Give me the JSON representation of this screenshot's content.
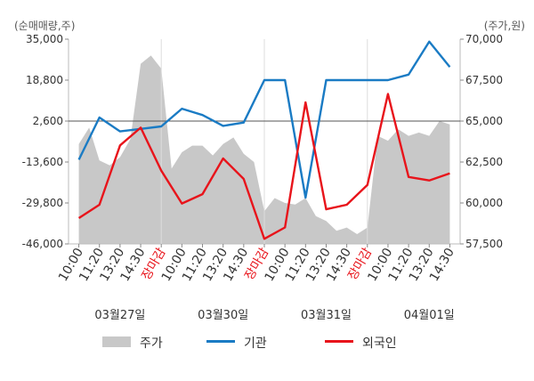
{
  "chart_data": {
    "type": "line",
    "left_unit": "(순매매량,주)",
    "right_unit": "(주가,원)",
    "left_axis": {
      "min": -46000,
      "max": 35000,
      "ticks": [
        "35,000",
        "18,800",
        "2,600",
        "-13,600",
        "-29,800",
        "-46,000"
      ],
      "tick_values": [
        35000,
        18800,
        2600,
        -13600,
        -29800,
        -46000
      ]
    },
    "right_axis": {
      "min": 57500,
      "max": 70000,
      "ticks": [
        "70,000",
        "67,500",
        "65,000",
        "62,500",
        "60,000",
        "57,500"
      ],
      "tick_values": [
        70000,
        67500,
        65000,
        62500,
        60000,
        57500
      ]
    },
    "x_ticks": [
      {
        "label": "10:00",
        "slot": 0,
        "close": false
      },
      {
        "label": "11:20",
        "slot": 1,
        "close": false
      },
      {
        "label": "13:20",
        "slot": 2,
        "close": false
      },
      {
        "label": "14:30",
        "slot": 3,
        "close": false
      },
      {
        "label": "장마감",
        "slot": 4,
        "close": true
      },
      {
        "label": "10:00",
        "slot": 5,
        "close": false
      },
      {
        "label": "11:20",
        "slot": 6,
        "close": false
      },
      {
        "label": "13:20",
        "slot": 7,
        "close": false
      },
      {
        "label": "14:30",
        "slot": 8,
        "close": false
      },
      {
        "label": "장마감",
        "slot": 9,
        "close": true
      },
      {
        "label": "10:00",
        "slot": 10,
        "close": false
      },
      {
        "label": "11:20",
        "slot": 11,
        "close": false
      },
      {
        "label": "13:20",
        "slot": 12,
        "close": false
      },
      {
        "label": "14:30",
        "slot": 13,
        "close": false
      },
      {
        "label": "장마감",
        "slot": 14,
        "close": true
      },
      {
        "label": "10:00",
        "slot": 15,
        "close": false
      },
      {
        "label": "11:20",
        "slot": 16,
        "close": false
      },
      {
        "label": "13:20",
        "slot": 17,
        "close": false
      },
      {
        "label": "14:30",
        "slot": 18,
        "close": false
      }
    ],
    "dates": [
      {
        "label": "03월27일",
        "slot": 2
      },
      {
        "label": "03월30일",
        "slot": 7
      },
      {
        "label": "03월31일",
        "slot": 12
      },
      {
        "label": "04월01일",
        "slot": 17
      }
    ],
    "reference_line": 2600,
    "series": [
      {
        "name": "기관",
        "color": "#1a7bc4",
        "axis": "left",
        "x": [
          0,
          1,
          2,
          3,
          4,
          5,
          6,
          7,
          8,
          9,
          10,
          11,
          12,
          13,
          14,
          15,
          16,
          17,
          18
        ],
        "values": [
          -12700,
          4000,
          -1500,
          -500,
          500,
          7500,
          5000,
          700,
          2000,
          18800,
          18800,
          -27700,
          18800,
          18800,
          18800,
          18800,
          21000,
          34000,
          24000
        ]
      },
      {
        "name": "외국인",
        "color": "#e8141b",
        "axis": "left",
        "x": [
          0,
          1,
          2,
          3,
          4,
          5,
          6,
          7,
          8,
          9,
          10,
          11,
          12,
          13,
          14,
          15,
          16,
          17,
          18
        ],
        "values": [
          -35800,
          -30500,
          -7000,
          0,
          -17000,
          -30000,
          -26300,
          -12200,
          -20300,
          -44000,
          -39500,
          10000,
          -32300,
          -30500,
          -22700,
          13300,
          -19500,
          -20900,
          -18100
        ]
      },
      {
        "name": "주가",
        "color": "#c8c8c8",
        "axis": "right",
        "area": true,
        "x": [
          0,
          0.5,
          1,
          1.5,
          2,
          2.5,
          3,
          3.5,
          4,
          4.5,
          5,
          5.5,
          6,
          6.5,
          7,
          7.5,
          8,
          8.5,
          9,
          9.5,
          10,
          10.5,
          11,
          11.5,
          12,
          12.5,
          13,
          13.5,
          14,
          14.5,
          15,
          15.5,
          16,
          16.5,
          17,
          17.5,
          18
        ],
        "values": [
          63600,
          64600,
          62600,
          62300,
          62800,
          63900,
          68500,
          69000,
          68200,
          62100,
          63100,
          63500,
          63500,
          62900,
          63600,
          64000,
          63000,
          62500,
          59500,
          60300,
          60000,
          59900,
          60300,
          59200,
          58900,
          58300,
          58500,
          58100,
          58500,
          64100,
          63800,
          64500,
          64100,
          64300,
          64100,
          65000,
          64800
        ]
      }
    ],
    "legend": [
      {
        "label": "주가",
        "kind": "area",
        "color": "#c8c8c8"
      },
      {
        "label": "기관",
        "kind": "line",
        "color": "#1a7bc4"
      },
      {
        "label": "외국인",
        "kind": "line",
        "color": "#e8141b"
      }
    ],
    "close_label_color": "#e8141b",
    "grid": false,
    "legend_position": "bottom"
  }
}
